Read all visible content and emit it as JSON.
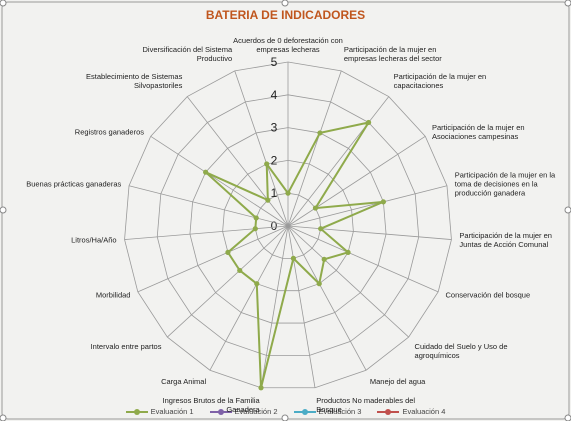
{
  "chart_data": {
    "type": "radar",
    "title": "BATERIA DE INDICADORES",
    "categories": [
      "Acuerdos de 0 deforestación con empresas lecheras",
      "Participación de la mujer en empresas lecheras del sector",
      "Participación de la mujer en capacitaciones",
      "Participación de la mujer en Asociaciones campesinas",
      "Participación de la mujer en la toma de decisiones en la producción ganadera",
      "Participación de la mujer en Juntas de Acción Comunal",
      "Conservación del bosque",
      "Cuidado del Suelo y Uso de agroquímicos",
      "Manejo del agua",
      "Productos No maderables del Bosque",
      "Ingresos Brutos de la Familia Ganadera",
      "Carga Animal",
      "Intervalo entre partos",
      "Morbilidad",
      "Litros/Ha/Año",
      "Buenas prácticas ganaderas",
      "Registros ganaderos",
      "Establecimiento de Sistemas Silvopastoriles",
      "Diversificación del Sistema Productivo"
    ],
    "series": [
      {
        "name": "Evaluación 1",
        "color": "#8faa4b",
        "values": [
          1,
          3,
          4,
          1,
          3,
          1,
          2,
          1.5,
          2,
          1,
          5,
          2,
          2,
          2,
          1,
          1,
          3,
          1,
          2
        ]
      },
      {
        "name": "Evaluación 2",
        "color": "#7f62a8",
        "values": [
          null,
          null,
          null,
          null,
          null,
          null,
          null,
          null,
          null,
          null,
          null,
          null,
          null,
          null,
          null,
          null,
          null,
          null,
          null
        ]
      },
      {
        "name": "Evaluación 3",
        "color": "#4bacc6",
        "values": [
          null,
          null,
          null,
          null,
          null,
          null,
          null,
          null,
          null,
          null,
          null,
          null,
          null,
          null,
          null,
          null,
          null,
          null,
          null
        ]
      },
      {
        "name": "Evaluación 4",
        "color": "#c0504d",
        "values": [
          null,
          null,
          null,
          null,
          null,
          null,
          null,
          null,
          null,
          null,
          null,
          null,
          null,
          null,
          null,
          null,
          null,
          null,
          null
        ]
      }
    ],
    "rlim": [
      0,
      5
    ],
    "rticks": [
      0,
      1,
      2,
      3,
      4,
      5
    ],
    "legend": "bottom"
  }
}
